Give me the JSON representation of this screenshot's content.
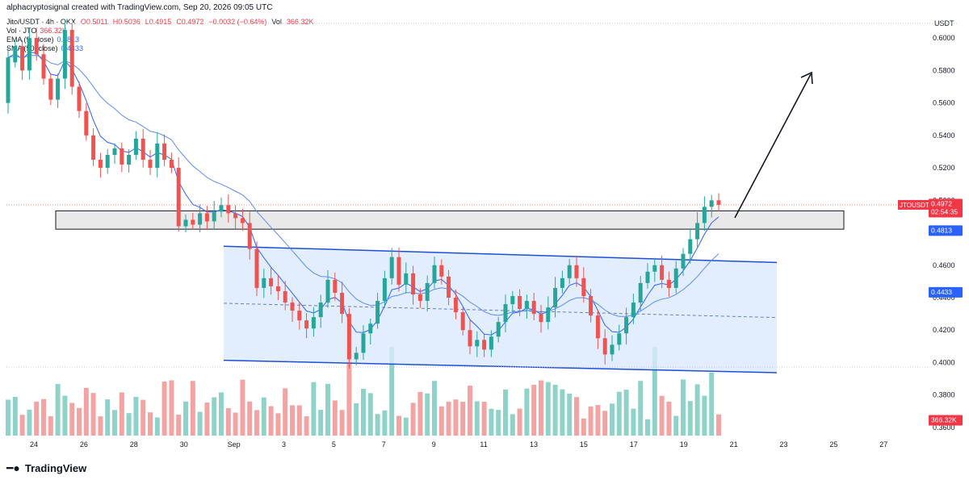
{
  "header": {
    "credit": "alphacryptosignal created with TradingView.com, Sep 20, 2026 09:05 UTC"
  },
  "legend": {
    "symbol_line": "Jito/USDT · 4h · OKX",
    "ohlc": [
      "O0.5011",
      "H0.5036",
      "L0.4915",
      "C0.4972",
      "−0.0032 (−0.64%)"
    ],
    "vol_label": "Vol",
    "vol_value": "366.32K",
    "vol_tag": "Vol · JTO",
    "ema_label": "EMA (9, close)",
    "ema_value": "0.4813",
    "sma_label": "SMA (50, close)",
    "sma_value": "0.4433"
  },
  "price_axis": {
    "currency": "USDT",
    "ticks": [
      "0.6000",
      "0.5800",
      "0.5600",
      "0.5400",
      "0.5200",
      "0.5000",
      "0.4800",
      "0.4600",
      "0.4400",
      "0.4200",
      "0.4000",
      "0.3800",
      "0.3600"
    ],
    "last_price_tag": {
      "symbol": "JTOUSDT",
      "price": "0.4972",
      "countdown": "02:54:35",
      "color": "#f23645"
    },
    "ema_tag": {
      "value": "0.4813",
      "color": "#2962ff"
    },
    "sma_tag": {
      "value": "0.4433",
      "color": "#2962ff"
    },
    "vol_tag": {
      "value": "366.32K",
      "color": "#f23645"
    }
  },
  "time_axis": {
    "labels": [
      "24",
      "26",
      "28",
      "30",
      "Sep",
      "3",
      "5",
      "7",
      "9",
      "11",
      "13",
      "15",
      "17",
      "19",
      "21",
      "23",
      "25",
      "27"
    ]
  },
  "watermark": {
    "text": "TradingView"
  },
  "colors": {
    "up": "#26a69a",
    "down": "#ef5350",
    "vol_up": "#8fd3c8",
    "vol_down": "#f4a3a3",
    "ema": "#2962ff",
    "sma": "#5b8def",
    "channel_fill": "#dbeafe",
    "channel_line": "#1d4ed8",
    "zone_fill": "#e9e9ea"
  },
  "chart_data": {
    "type": "candlestick",
    "symbol": "JTOUSDT",
    "interval": "4h",
    "ylim": [
      0.355,
      0.612
    ],
    "candles_approx": [
      [
        0.56,
        0.588
      ],
      [
        0.585,
        0.595
      ],
      [
        0.595,
        0.58
      ],
      [
        0.58,
        0.6
      ],
      [
        0.6,
        0.59
      ],
      [
        0.59,
        0.575
      ],
      [
        0.575,
        0.562
      ],
      [
        0.562,
        0.575
      ],
      [
        0.575,
        0.605
      ],
      [
        0.605,
        0.57
      ],
      [
        0.57,
        0.555
      ],
      [
        0.555,
        0.54
      ],
      [
        0.54,
        0.525
      ],
      [
        0.525,
        0.52
      ],
      [
        0.52,
        0.528
      ],
      [
        0.528,
        0.532
      ],
      [
        0.532,
        0.522
      ],
      [
        0.522,
        0.528
      ],
      [
        0.528,
        0.538
      ],
      [
        0.538,
        0.525
      ],
      [
        0.525,
        0.52
      ],
      [
        0.52,
        0.535
      ],
      [
        0.535,
        0.525
      ],
      [
        0.525,
        0.52
      ],
      [
        0.52,
        0.484
      ],
      [
        0.484,
        0.488
      ],
      [
        0.488,
        0.485
      ],
      [
        0.485,
        0.492
      ],
      [
        0.492,
        0.487
      ],
      [
        0.487,
        0.493
      ],
      [
        0.493,
        0.497
      ],
      [
        0.497,
        0.492
      ],
      [
        0.492,
        0.489
      ],
      [
        0.489,
        0.486
      ],
      [
        0.486,
        0.47
      ],
      [
        0.47,
        0.446
      ],
      [
        0.446,
        0.452
      ],
      [
        0.452,
        0.447
      ],
      [
        0.447,
        0.444
      ],
      [
        0.444,
        0.437
      ],
      [
        0.437,
        0.432
      ],
      [
        0.432,
        0.426
      ],
      [
        0.426,
        0.421
      ],
      [
        0.421,
        0.428
      ],
      [
        0.428,
        0.437
      ],
      [
        0.437,
        0.451
      ],
      [
        0.451,
        0.443
      ],
      [
        0.443,
        0.43
      ],
      [
        0.43,
        0.402
      ],
      [
        0.402,
        0.406
      ],
      [
        0.406,
        0.418
      ],
      [
        0.418,
        0.424
      ],
      [
        0.424,
        0.438
      ],
      [
        0.438,
        0.452
      ],
      [
        0.452,
        0.465
      ],
      [
        0.465,
        0.448
      ],
      [
        0.448,
        0.455
      ],
      [
        0.455,
        0.442
      ],
      [
        0.442,
        0.438
      ],
      [
        0.438,
        0.449
      ],
      [
        0.449,
        0.46
      ],
      [
        0.46,
        0.453
      ],
      [
        0.453,
        0.44
      ],
      [
        0.44,
        0.431
      ],
      [
        0.431,
        0.42
      ],
      [
        0.42,
        0.41
      ],
      [
        0.41,
        0.414
      ],
      [
        0.414,
        0.408
      ],
      [
        0.408,
        0.416
      ],
      [
        0.416,
        0.425
      ],
      [
        0.425,
        0.436
      ],
      [
        0.436,
        0.441
      ],
      [
        0.441,
        0.433
      ],
      [
        0.433,
        0.438
      ],
      [
        0.438,
        0.43
      ],
      [
        0.43,
        0.425
      ],
      [
        0.425,
        0.434
      ],
      [
        0.434,
        0.446
      ],
      [
        0.446,
        0.452
      ],
      [
        0.452,
        0.46
      ],
      [
        0.46,
        0.452
      ],
      [
        0.452,
        0.441
      ],
      [
        0.441,
        0.429
      ],
      [
        0.429,
        0.415
      ],
      [
        0.415,
        0.405
      ],
      [
        0.405,
        0.411
      ],
      [
        0.411,
        0.418
      ],
      [
        0.418,
        0.428
      ],
      [
        0.428,
        0.437
      ],
      [
        0.437,
        0.449
      ],
      [
        0.449,
        0.456
      ],
      [
        0.456,
        0.46
      ],
      [
        0.46,
        0.451
      ],
      [
        0.451,
        0.446
      ],
      [
        0.446,
        0.458
      ],
      [
        0.458,
        0.467
      ],
      [
        0.467,
        0.476
      ],
      [
        0.476,
        0.486
      ],
      [
        0.486,
        0.496
      ],
      [
        0.496,
        0.5
      ],
      [
        0.5,
        0.4972
      ]
    ],
    "annotations": [
      {
        "type": "resistance-zone",
        "price_range": [
          0.4822,
          0.4935
        ]
      },
      {
        "type": "descending-channel",
        "upper": [
          0.4717,
          0.4617
        ],
        "lower": [
          0.4014,
          0.3938
        ]
      },
      {
        "type": "arrow-up-projection"
      }
    ]
  }
}
